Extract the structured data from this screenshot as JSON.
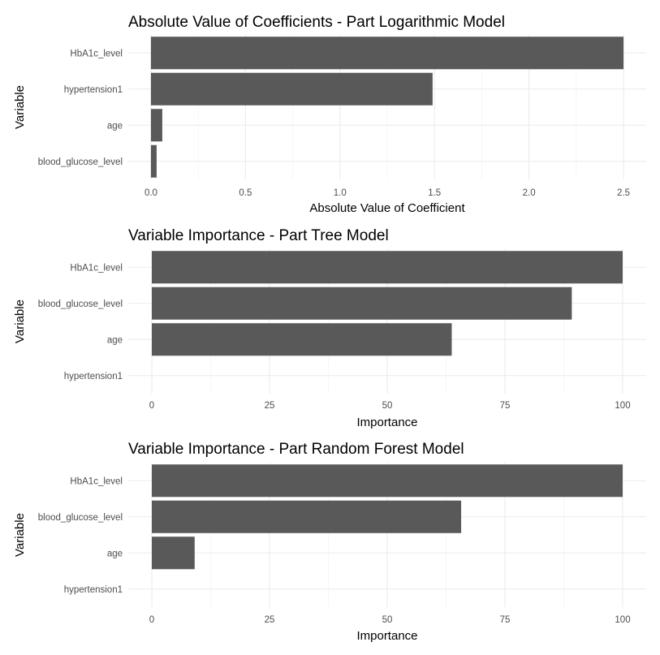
{
  "chart_data": [
    {
      "type": "bar",
      "orientation": "horizontal",
      "title": "Absolute Value of Coefficients - Part Logarithmic Model",
      "xlabel": "Absolute Value of Coefficient",
      "ylabel": "Variable",
      "categories": [
        "HbA1c_level",
        "hypertension1",
        "age",
        "blood_glucose_level"
      ],
      "values": [
        2.5,
        1.49,
        0.06,
        0.03
      ],
      "xlim": [
        -0.12,
        2.62
      ],
      "xticks": [
        0.0,
        0.5,
        1.0,
        1.5,
        2.0,
        2.5
      ],
      "xtick_labels": [
        "0.0",
        "0.5",
        "1.0",
        "1.5",
        "2.0",
        "2.5"
      ],
      "bar_color": "#595959",
      "grid": true,
      "legend": "none"
    },
    {
      "type": "bar",
      "orientation": "horizontal",
      "title": "Variable Importance - Part Tree Model",
      "xlabel": "Importance",
      "ylabel": "Variable",
      "categories": [
        "HbA1c_level",
        "blood_glucose_level",
        "age",
        "hypertension1"
      ],
      "values": [
        100,
        89.2,
        63.7,
        0
      ],
      "xlim": [
        -5,
        105
      ],
      "xticks": [
        0,
        25,
        50,
        75,
        100
      ],
      "xtick_labels": [
        "0",
        "25",
        "50",
        "75",
        "100"
      ],
      "bar_color": "#595959",
      "grid": true,
      "legend": "none"
    },
    {
      "type": "bar",
      "orientation": "horizontal",
      "title": "Variable Importance - Part Random Forest Model",
      "xlabel": "Importance",
      "ylabel": "Variable",
      "categories": [
        "HbA1c_level",
        "blood_glucose_level",
        "age",
        "hypertension1"
      ],
      "values": [
        100,
        65.7,
        9.1,
        0
      ],
      "xlim": [
        -5,
        105
      ],
      "xticks": [
        0,
        25,
        50,
        75,
        100
      ],
      "xtick_labels": [
        "0",
        "25",
        "50",
        "75",
        "100"
      ],
      "bar_color": "#595959",
      "grid": true,
      "legend": "none"
    }
  ]
}
